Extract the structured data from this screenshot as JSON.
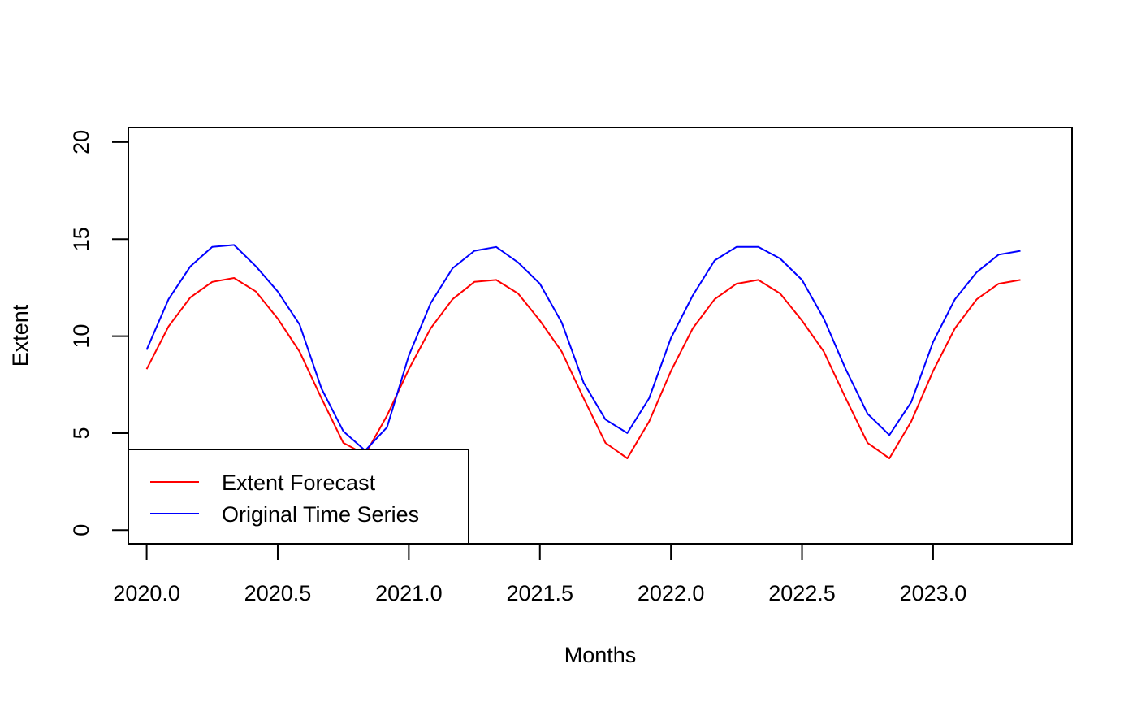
{
  "chart_data": {
    "type": "line",
    "title": "",
    "xlabel": "Months",
    "ylabel": "Extent",
    "xlim": [
      2019.93,
      2023.53
    ],
    "ylim": [
      -0.7,
      20.75
    ],
    "x_ticks": [
      2020.0,
      2020.5,
      2021.0,
      2021.5,
      2022.0,
      2022.5,
      2023.0
    ],
    "x_tick_labels": [
      "2020.0",
      "2020.5",
      "2021.0",
      "2021.5",
      "2022.0",
      "2022.5",
      "2023.0"
    ],
    "y_ticks": [
      0,
      5,
      10,
      15,
      20
    ],
    "y_tick_labels": [
      "0",
      "5",
      "10",
      "15",
      "20"
    ],
    "grid": false,
    "legend_position": "bottom-left",
    "x_start": 2020.0,
    "x_step_months": 1,
    "series": [
      {
        "name": "Extent Forecast",
        "color": "#ff0000",
        "values": [
          8.3,
          10.5,
          12.0,
          12.8,
          13.0,
          12.3,
          10.9,
          9.2,
          6.8,
          4.5,
          3.9,
          5.9,
          8.3,
          10.4,
          11.9,
          12.8,
          12.9,
          12.2,
          10.8,
          9.2,
          6.8,
          4.5,
          3.7,
          5.6,
          8.2,
          10.4,
          11.9,
          12.7,
          12.9,
          12.2,
          10.8,
          9.2,
          6.8,
          4.5,
          3.7,
          5.6,
          8.2,
          10.4,
          11.9,
          12.7,
          12.9
        ]
      },
      {
        "name": "Original Time Series",
        "color": "#0000ff",
        "values": [
          9.3,
          11.9,
          13.6,
          14.6,
          14.7,
          13.6,
          12.3,
          10.6,
          7.3,
          5.1,
          4.1,
          5.3,
          9.0,
          11.7,
          13.5,
          14.4,
          14.6,
          13.8,
          12.7,
          10.7,
          7.6,
          5.7,
          5.0,
          6.8,
          9.9,
          12.1,
          13.9,
          14.6,
          14.6,
          14.0,
          12.9,
          10.9,
          8.3,
          6.0,
          4.9,
          6.6,
          9.7,
          11.9,
          13.3,
          14.2,
          14.4
        ]
      }
    ]
  }
}
